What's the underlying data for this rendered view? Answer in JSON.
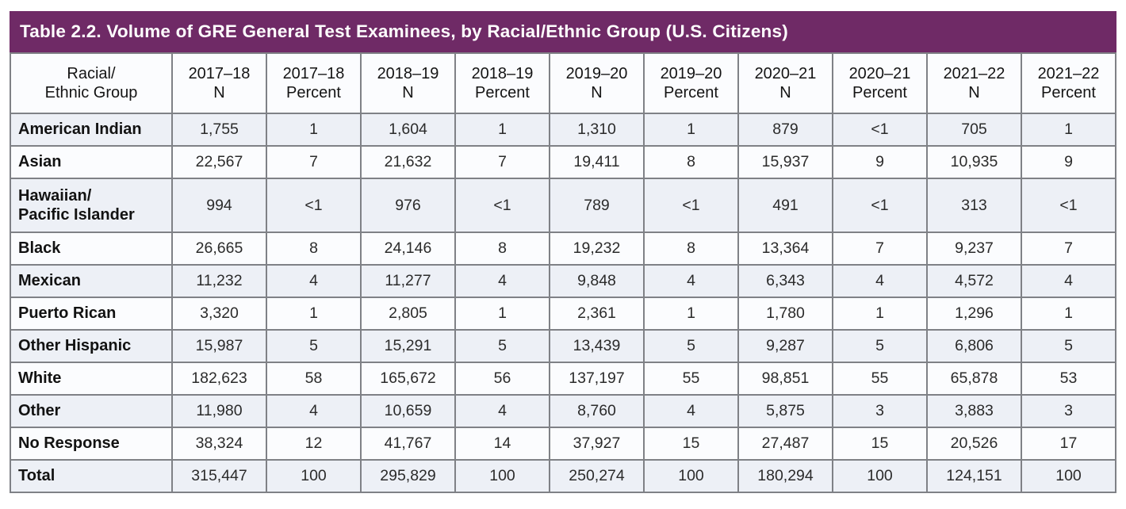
{
  "table": {
    "title": "Table 2.2. Volume of GRE General Test Examinees, by Racial/Ethnic Group (U.S. Citizens)",
    "columns": [
      "Racial/\nEthnic Group",
      "2017–18\nN",
      "2017–18\nPercent",
      "2018–19\nN",
      "2018–19\nPercent",
      "2019–20\nN",
      "2019–20\nPercent",
      "2020–21\nN",
      "2020–21\nPercent",
      "2021–22\nN",
      "2021–22\nPercent"
    ],
    "rows": [
      {
        "group": "American Indian",
        "values": [
          "1,755",
          "1",
          "1,604",
          "1",
          "1,310",
          "1",
          "879",
          "<1",
          "705",
          "1"
        ]
      },
      {
        "group": "Asian",
        "values": [
          "22,567",
          "7",
          "21,632",
          "7",
          "19,411",
          "8",
          "15,937",
          "9",
          "10,935",
          "9"
        ]
      },
      {
        "group": "Hawaiian/\nPacific Islander",
        "values": [
          "994",
          "<1",
          "976",
          "<1",
          "789",
          "<1",
          "491",
          "<1",
          "313",
          "<1"
        ]
      },
      {
        "group": "Black",
        "values": [
          "26,665",
          "8",
          "24,146",
          "8",
          "19,232",
          "8",
          "13,364",
          "7",
          "9,237",
          "7"
        ]
      },
      {
        "group": "Mexican",
        "values": [
          "11,232",
          "4",
          "11,277",
          "4",
          "9,848",
          "4",
          "6,343",
          "4",
          "4,572",
          "4"
        ]
      },
      {
        "group": "Puerto Rican",
        "values": [
          "3,320",
          "1",
          "2,805",
          "1",
          "2,361",
          "1",
          "1,780",
          "1",
          "1,296",
          "1"
        ]
      },
      {
        "group": "Other Hispanic",
        "values": [
          "15,987",
          "5",
          "15,291",
          "5",
          "13,439",
          "5",
          "9,287",
          "5",
          "6,806",
          "5"
        ]
      },
      {
        "group": "White",
        "values": [
          "182,623",
          "58",
          "165,672",
          "56",
          "137,197",
          "55",
          "98,851",
          "55",
          "65,878",
          "53"
        ]
      },
      {
        "group": "Other",
        "values": [
          "11,980",
          "4",
          "10,659",
          "4",
          "8,760",
          "4",
          "5,875",
          "3",
          "3,883",
          "3"
        ]
      },
      {
        "group": "No Response",
        "values": [
          "38,324",
          "12",
          "41,767",
          "14",
          "37,927",
          "15",
          "27,487",
          "15",
          "20,526",
          "17"
        ]
      },
      {
        "group": "Total",
        "values": [
          "315,447",
          "100",
          "295,829",
          "100",
          "250,274",
          "100",
          "180,294",
          "100",
          "124,151",
          "100"
        ]
      }
    ],
    "colors": {
      "title_bar_background": "#6F2A66",
      "title_text": "#FFFFFF",
      "row_shaded": "#EDF0F6",
      "row_plain": "#FBFCFE",
      "grid_border": "#7F8186"
    }
  }
}
